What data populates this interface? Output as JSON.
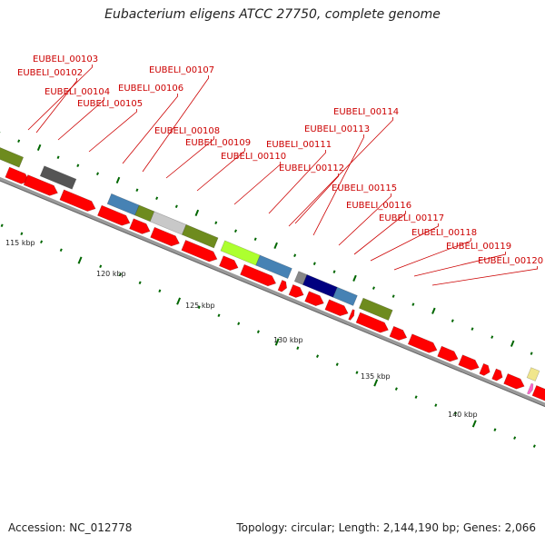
{
  "title": "Eubacterium eligens ATCC 27750, complete genome",
  "footer": {
    "accession": "Accession: NC_012778",
    "summary": "Topology: circular; Length: 2,144,190 bp; Genes: 2,066"
  },
  "colors": {
    "cds": "#ff0000",
    "line": "#cc0000",
    "backbone": "#999999",
    "tick": "#006600"
  },
  "ruler_labels": [
    "115 kbp",
    "120 kbp",
    "125 kbp",
    "130 kbp",
    "135 kbp",
    "140 kbp"
  ],
  "gene_labels": [
    "EUBELI_00103",
    "EUBELI_00102",
    "EUBELI_00104",
    "EUBELI_00105",
    "EUBELI_00107",
    "EUBELI_00106",
    "EUBELI_00108",
    "EUBELI_00109",
    "EUBELI_00110",
    "EUBELI_00111",
    "EUBELI_00112",
    "EUBELI_00114",
    "EUBELI_00113",
    "EUBELI_00115",
    "EUBELI_00116",
    "EUBELI_00117",
    "EUBELI_00118",
    "EUBELI_00119",
    "EUBELI_00120"
  ]
}
